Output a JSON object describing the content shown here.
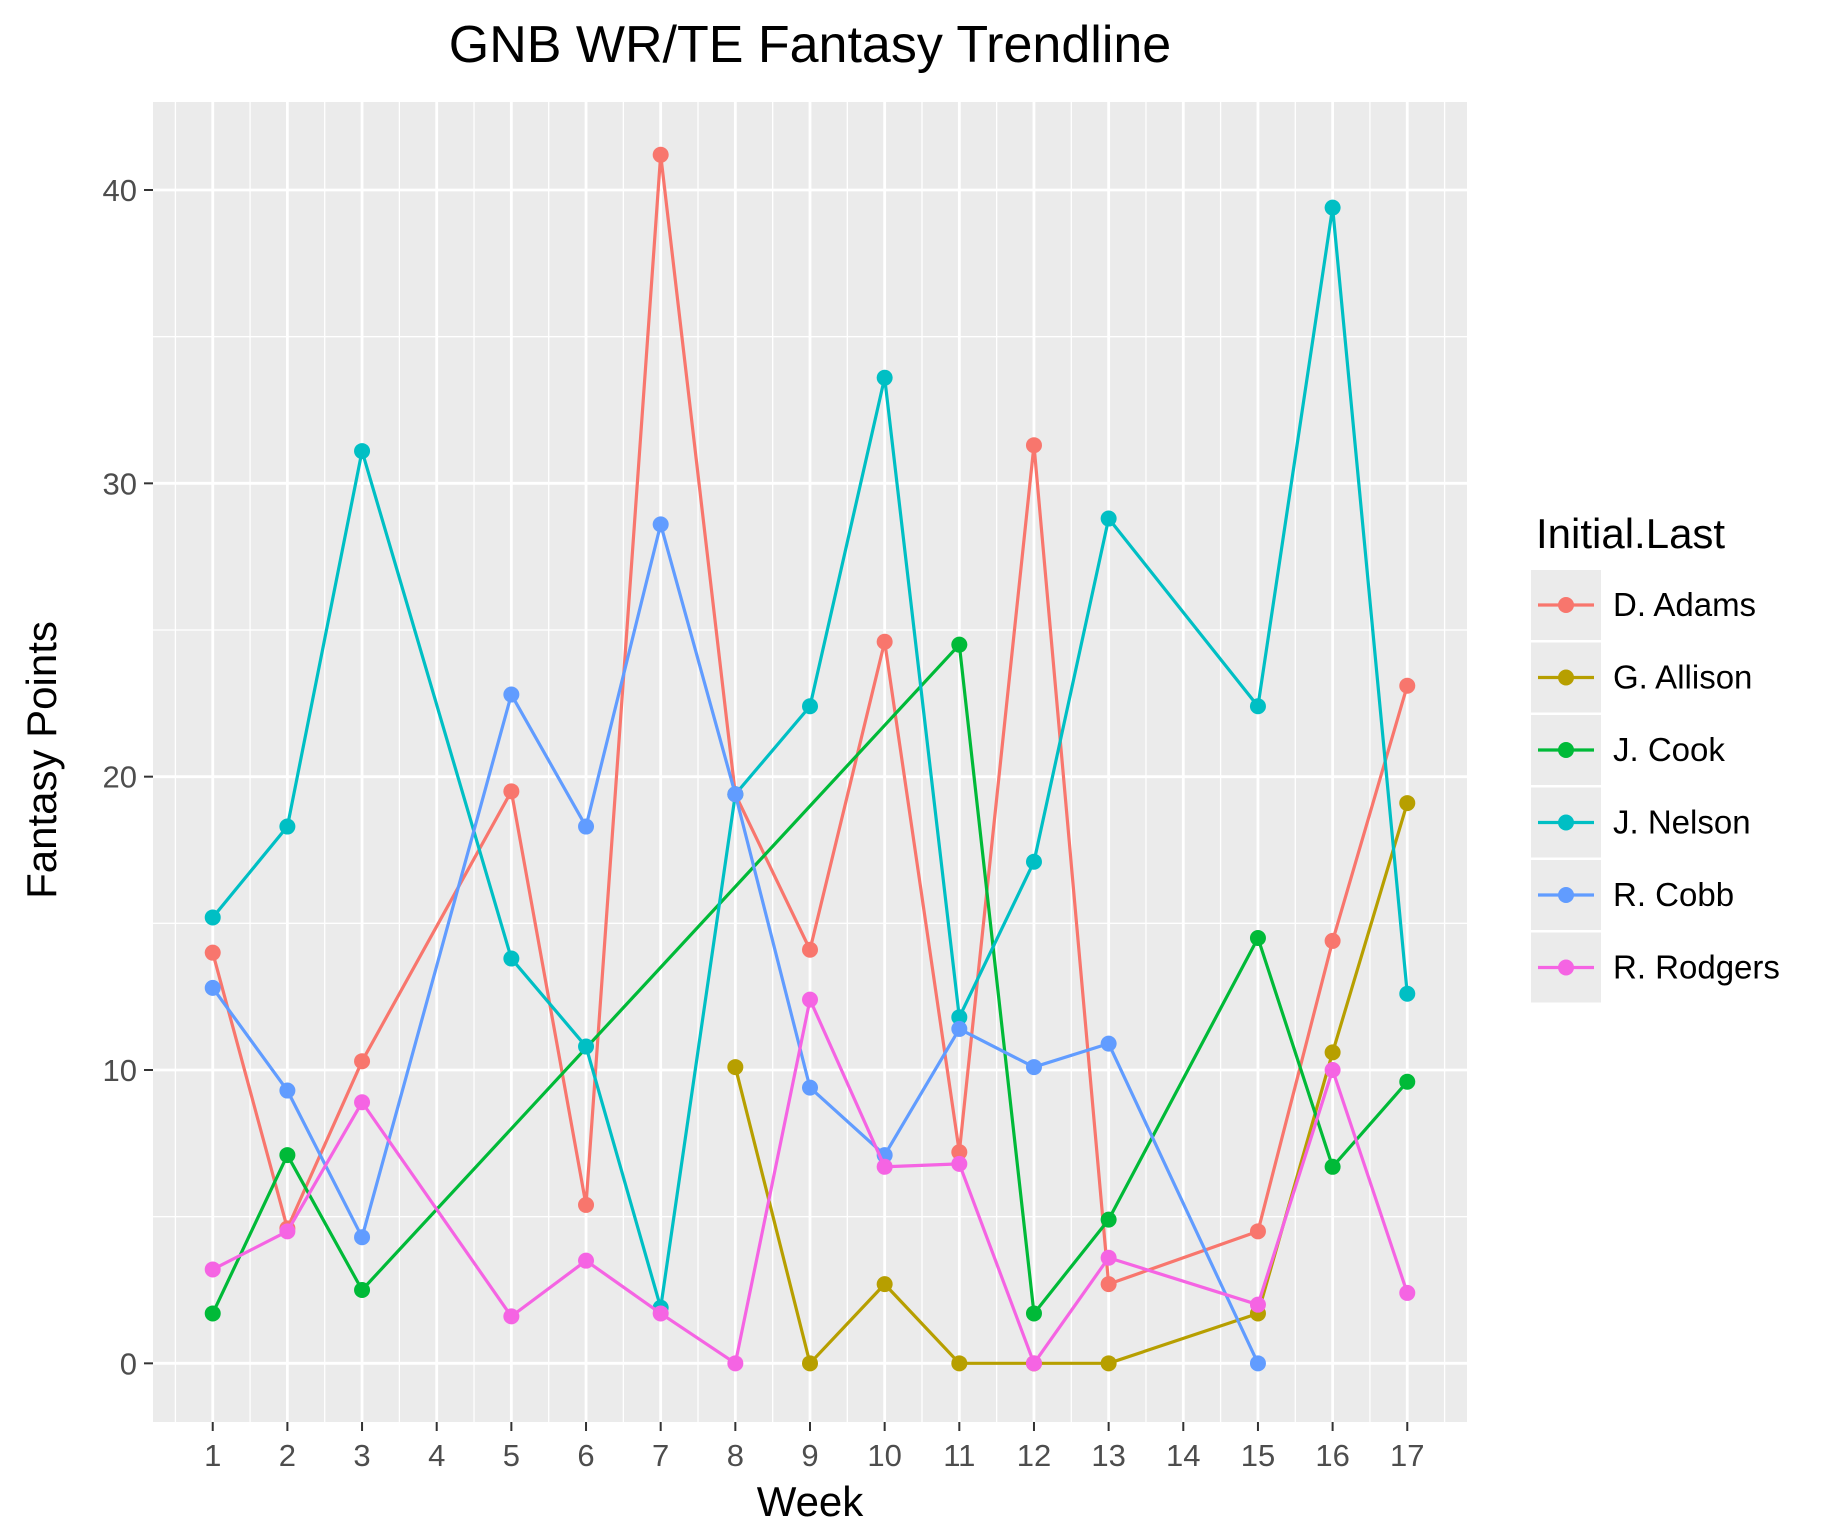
{
  "chart_data": {
    "type": "line",
    "title": "GNB WR/TE Fantasy Trendline",
    "xlabel": "Week",
    "ylabel": "Fantasy Points",
    "x_ticks": [
      1,
      2,
      3,
      4,
      5,
      6,
      7,
      8,
      9,
      10,
      11,
      12,
      13,
      14,
      15,
      16,
      17
    ],
    "xlim": [
      0.2,
      17.8
    ],
    "ylim": [
      -2,
      43
    ],
    "y_ticks": [
      0,
      10,
      20,
      30,
      40
    ],
    "grid": true,
    "legend": {
      "title": "Initial.Last",
      "position": "right"
    },
    "series": [
      {
        "name": "D. Adams",
        "color": "#F8766D",
        "points": [
          [
            1,
            14.0
          ],
          [
            2,
            4.6
          ],
          [
            3,
            10.3
          ],
          [
            5,
            19.5
          ],
          [
            6,
            5.4
          ],
          [
            7,
            41.2
          ],
          [
            8,
            19.4
          ],
          [
            9,
            14.1
          ],
          [
            10,
            24.6
          ],
          [
            11,
            7.2
          ],
          [
            12,
            31.3
          ],
          [
            13,
            2.7
          ],
          [
            15,
            4.5
          ],
          [
            16,
            14.4
          ],
          [
            17,
            23.1
          ]
        ]
      },
      {
        "name": "G. Allison",
        "color": "#B79F00",
        "points": [
          [
            8,
            10.1
          ],
          [
            9,
            0.0
          ],
          [
            10,
            2.7
          ],
          [
            11,
            0.0
          ],
          [
            12,
            0.0
          ],
          [
            13,
            0.0
          ],
          [
            15,
            1.7
          ],
          [
            16,
            10.6
          ],
          [
            17,
            19.1
          ]
        ]
      },
      {
        "name": "J. Cook",
        "color": "#00BA38",
        "points": [
          [
            1,
            1.7
          ],
          [
            2,
            7.1
          ],
          [
            3,
            2.5
          ],
          [
            11,
            24.5
          ],
          [
            12,
            1.7
          ],
          [
            13,
            4.9
          ],
          [
            15,
            14.5
          ],
          [
            16,
            6.7
          ],
          [
            17,
            9.6
          ]
        ]
      },
      {
        "name": "J. Nelson",
        "color": "#00BFC4",
        "points": [
          [
            1,
            15.2
          ],
          [
            2,
            18.3
          ],
          [
            3,
            31.1
          ],
          [
            5,
            13.8
          ],
          [
            6,
            10.8
          ],
          [
            7,
            1.9
          ],
          [
            8,
            19.4
          ],
          [
            9,
            22.4
          ],
          [
            10,
            33.6
          ],
          [
            11,
            11.8
          ],
          [
            12,
            17.1
          ],
          [
            13,
            28.8
          ],
          [
            15,
            22.4
          ],
          [
            16,
            39.4
          ],
          [
            17,
            12.6
          ]
        ]
      },
      {
        "name": "R. Cobb",
        "color": "#619CFF",
        "points": [
          [
            1,
            12.8
          ],
          [
            2,
            9.3
          ],
          [
            3,
            4.3
          ],
          [
            5,
            22.8
          ],
          [
            6,
            18.3
          ],
          [
            7,
            28.6
          ],
          [
            8,
            19.4
          ],
          [
            9,
            9.4
          ],
          [
            10,
            7.1
          ],
          [
            11,
            11.4
          ],
          [
            12,
            10.1
          ],
          [
            13,
            10.9
          ],
          [
            15,
            0.0
          ]
        ]
      },
      {
        "name": "R. Rodgers",
        "color": "#F564E3",
        "points": [
          [
            1,
            3.2
          ],
          [
            2,
            4.5
          ],
          [
            3,
            8.9
          ],
          [
            5,
            1.6
          ],
          [
            6,
            3.5
          ],
          [
            7,
            1.7
          ],
          [
            8,
            0.0
          ],
          [
            9,
            12.4
          ],
          [
            10,
            6.7
          ],
          [
            11,
            6.8
          ],
          [
            12,
            0.0
          ],
          [
            13,
            3.6
          ],
          [
            15,
            2.0
          ],
          [
            16,
            10.0
          ],
          [
            17,
            2.4
          ]
        ]
      }
    ]
  }
}
